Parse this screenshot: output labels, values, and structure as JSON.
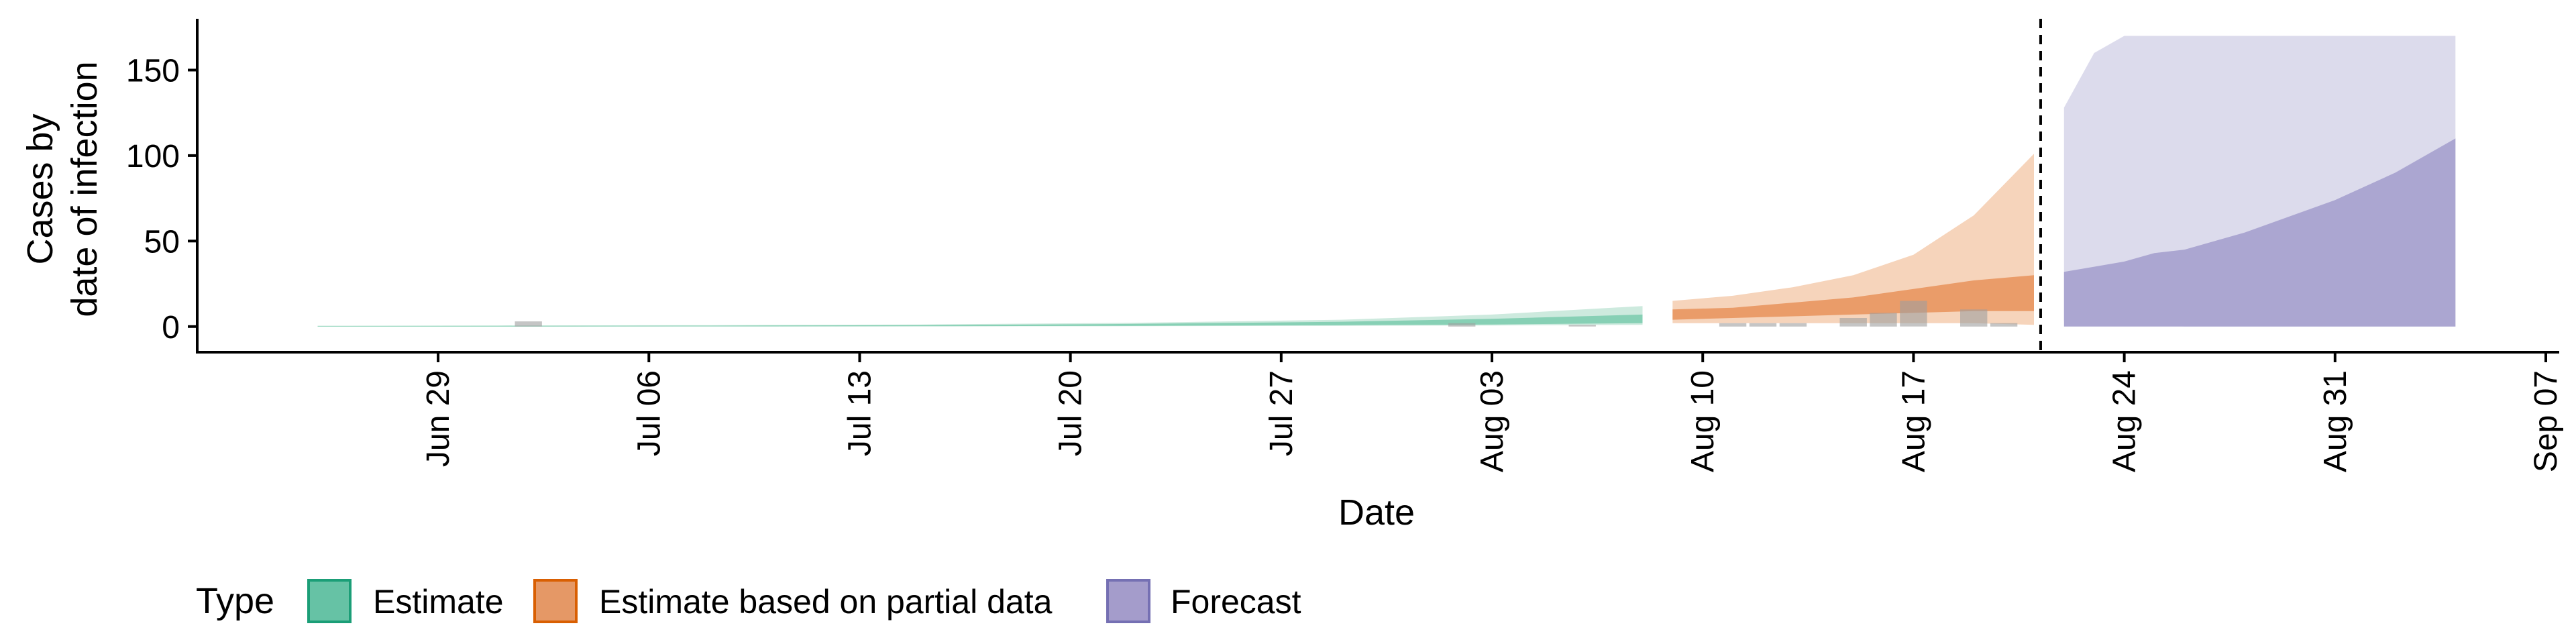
{
  "chart_data": {
    "type": "area",
    "title": "",
    "xlabel": "Date",
    "ylabel_lines": [
      "Cases by",
      "date of infection"
    ],
    "ylim": [
      -15,
      180
    ],
    "y_ticks": [
      0,
      50,
      100,
      150
    ],
    "x_range": [
      "2020-06-21",
      "2020-09-07"
    ],
    "x_ticks": [
      {
        "date": "2020-06-29",
        "label": "Jun 29"
      },
      {
        "date": "2020-07-06",
        "label": "Jul 06"
      },
      {
        "date": "2020-07-13",
        "label": "Jul 13"
      },
      {
        "date": "2020-07-20",
        "label": "Jul 20"
      },
      {
        "date": "2020-07-27",
        "label": "Jul 27"
      },
      {
        "date": "2020-08-03",
        "label": "Aug 03"
      },
      {
        "date": "2020-08-10",
        "label": "Aug 10"
      },
      {
        "date": "2020-08-17",
        "label": "Aug 17"
      },
      {
        "date": "2020-08-24",
        "label": "Aug 24"
      },
      {
        "date": "2020-08-31",
        "label": "Aug 31"
      },
      {
        "date": "2020-09-07",
        "label": "Sep 07"
      }
    ],
    "forecast_start": "2020-08-21",
    "grid": false,
    "legend": {
      "title": "Type",
      "position": "bottom",
      "entries": [
        {
          "label": "Estimate",
          "fill": "#66c2a5",
          "stroke": "#1b9e77"
        },
        {
          "label": "Estimate based on partial data",
          "fill": "#e59866",
          "stroke": "#d95f02"
        },
        {
          "label": "Forecast",
          "fill": "#a49ccb",
          "stroke": "#7570b3"
        }
      ]
    },
    "series": [
      {
        "type": "Estimate",
        "color": "#1b9e77",
        "points": [
          {
            "date": "2020-06-25",
            "outer_lo": 0,
            "outer_hi": 0.5,
            "inner_lo": 0,
            "inner_hi": 0.3
          },
          {
            "date": "2020-07-01",
            "outer_lo": 0,
            "outer_hi": 0.6,
            "inner_lo": 0,
            "inner_hi": 0.4
          },
          {
            "date": "2020-07-08",
            "outer_lo": 0,
            "outer_hi": 0.8,
            "inner_lo": 0.1,
            "inner_hi": 0.5
          },
          {
            "date": "2020-07-15",
            "outer_lo": 0.1,
            "outer_hi": 1.2,
            "inner_lo": 0.2,
            "inner_hi": 0.8
          },
          {
            "date": "2020-07-22",
            "outer_lo": 0.2,
            "outer_hi": 2.2,
            "inner_lo": 0.4,
            "inner_hi": 1.5
          },
          {
            "date": "2020-07-29",
            "outer_lo": 0.4,
            "outer_hi": 4,
            "inner_lo": 0.8,
            "inner_hi": 2.8
          },
          {
            "date": "2020-08-03",
            "outer_lo": 0.6,
            "outer_hi": 7,
            "inner_lo": 1.2,
            "inner_hi": 4.5
          },
          {
            "date": "2020-08-08",
            "outer_lo": 1,
            "outer_hi": 12,
            "inner_lo": 2,
            "inner_hi": 7
          }
        ]
      },
      {
        "type": "Estimate based on partial data",
        "color": "#d95f02",
        "points": [
          {
            "date": "2020-08-09",
            "outer_lo": 2,
            "outer_hi": 15,
            "inner_lo": 4,
            "inner_hi": 10
          },
          {
            "date": "2020-08-11",
            "outer_lo": 2,
            "outer_hi": 18,
            "inner_lo": 5,
            "inner_hi": 11
          },
          {
            "date": "2020-08-13",
            "outer_lo": 2,
            "outer_hi": 23,
            "inner_lo": 6,
            "inner_hi": 14
          },
          {
            "date": "2020-08-15",
            "outer_lo": 2,
            "outer_hi": 30,
            "inner_lo": 7,
            "inner_hi": 17
          },
          {
            "date": "2020-08-17",
            "outer_lo": 2,
            "outer_hi": 42,
            "inner_lo": 8,
            "inner_hi": 22
          },
          {
            "date": "2020-08-19",
            "outer_lo": 2,
            "outer_hi": 65,
            "inner_lo": 9,
            "inner_hi": 27
          },
          {
            "date": "2020-08-21",
            "outer_lo": 1,
            "outer_hi": 101,
            "inner_lo": 9,
            "inner_hi": 30
          }
        ]
      },
      {
        "type": "Forecast",
        "color": "#7570b3",
        "points": [
          {
            "date": "2020-08-22",
            "outer_lo": 3,
            "outer_hi": 128,
            "inner_lo": 0,
            "inner_hi": 32
          },
          {
            "date": "2020-08-23",
            "outer_lo": 2,
            "outer_hi": 160,
            "inner_lo": 0,
            "inner_hi": 35
          },
          {
            "date": "2020-08-24",
            "outer_lo": 1,
            "outer_hi": 170,
            "inner_lo": 0,
            "inner_hi": 38
          },
          {
            "date": "2020-08-25",
            "outer_lo": 1,
            "outer_hi": 170,
            "inner_lo": 0,
            "inner_hi": 43
          },
          {
            "date": "2020-08-26",
            "outer_lo": 0,
            "outer_hi": 170,
            "inner_lo": 0,
            "inner_hi": 45
          },
          {
            "date": "2020-08-28",
            "outer_lo": 0,
            "outer_hi": 170,
            "inner_lo": 0,
            "inner_hi": 55
          },
          {
            "date": "2020-08-31",
            "outer_lo": 0,
            "outer_hi": 170,
            "inner_lo": 0,
            "inner_hi": 74
          },
          {
            "date": "2020-09-02",
            "outer_lo": 0,
            "outer_hi": 170,
            "inner_lo": 0,
            "inner_hi": 90
          },
          {
            "date": "2020-09-04",
            "outer_lo": 0,
            "outer_hi": 170,
            "inner_lo": 0,
            "inner_hi": 110
          }
        ]
      }
    ],
    "observed_cases": [
      {
        "date": "2020-07-02",
        "value": 3
      },
      {
        "date": "2020-08-02",
        "value": 2
      },
      {
        "date": "2020-08-06",
        "value": 1
      },
      {
        "date": "2020-08-11",
        "value": 2
      },
      {
        "date": "2020-08-12",
        "value": 2
      },
      {
        "date": "2020-08-13",
        "value": 2
      },
      {
        "date": "2020-08-15",
        "value": 5
      },
      {
        "date": "2020-08-16",
        "value": 8
      },
      {
        "date": "2020-08-17",
        "value": 15
      },
      {
        "date": "2020-08-19",
        "value": 10
      },
      {
        "date": "2020-08-20",
        "value": 2
      }
    ]
  }
}
